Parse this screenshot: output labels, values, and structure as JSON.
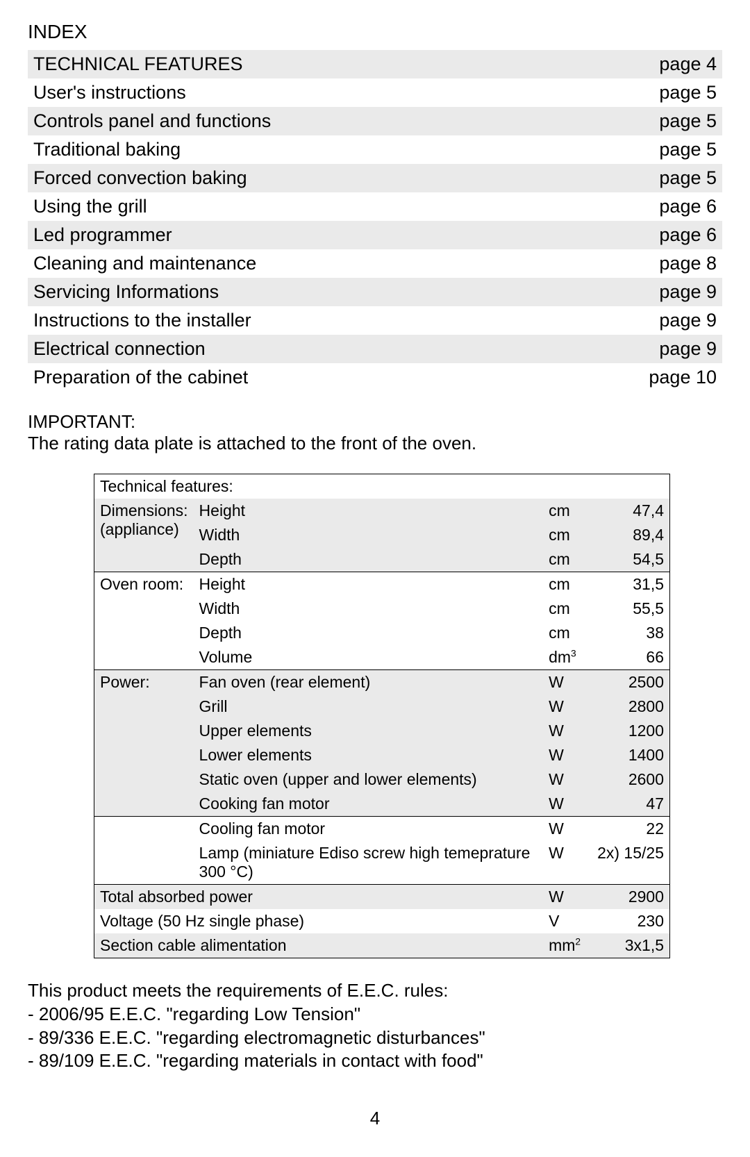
{
  "index": {
    "title": "INDEX",
    "rows": [
      {
        "label": "TECHNICAL FEATURES",
        "page": "page 4",
        "shade": true
      },
      {
        "label": "User's instructions",
        "page": "page 5",
        "shade": false
      },
      {
        "label": "Controls panel and functions",
        "page": "page 5",
        "shade": true
      },
      {
        "label": "Traditional baking",
        "page": "page 5",
        "shade": false
      },
      {
        "label": "Forced convection baking",
        "page": "page 5",
        "shade": true
      },
      {
        "label": "Using the grill",
        "page": "page 6",
        "shade": false
      },
      {
        "label": "Led programmer",
        "page": "page 6",
        "shade": true
      },
      {
        "label": "Cleaning and maintenance",
        "page": "page 8",
        "shade": false
      },
      {
        "label": "Servicing Informations",
        "page": "page 9",
        "shade": true
      },
      {
        "label": "Instructions to the installer",
        "page": "page 9",
        "shade": false
      },
      {
        "label": "Electrical connection",
        "page": "page 9",
        "shade": true
      },
      {
        "label": "Preparation of the cabinet",
        "page": "page 10",
        "shade": false
      }
    ]
  },
  "important": {
    "title": "IMPORTANT:",
    "body": "The rating data plate is attached to the front of the oven."
  },
  "tech": {
    "header": "Technical features:",
    "groups": [
      {
        "label": "Dimensions:\n(appliance)",
        "rows": [
          {
            "name": "Height",
            "unit": "cm",
            "value": "47,4"
          },
          {
            "name": "Width",
            "unit": "cm",
            "value": "89,4"
          },
          {
            "name": "Depth",
            "unit": "cm",
            "value": "54,5"
          }
        ],
        "sepBefore": false,
        "shade": true
      },
      {
        "label": "Oven room:",
        "rows": [
          {
            "name": "Height",
            "unit": "cm",
            "value": "31,5"
          },
          {
            "name": "Width",
            "unit": "cm",
            "value": "55,5"
          },
          {
            "name": "Depth",
            "unit": "cm",
            "value": "38"
          },
          {
            "name": "Volume",
            "unit": "dm³",
            "value": "66"
          }
        ],
        "sepBefore": true,
        "shade": false
      },
      {
        "label": "Power:",
        "rows": [
          {
            "name": "Fan oven (rear element)",
            "unit": "W",
            "value": "2500"
          },
          {
            "name": "Grill",
            "unit": "W",
            "value": "2800"
          },
          {
            "name": "Upper  elements",
            "unit": "W",
            "value": "1200"
          },
          {
            "name": "Lower elements",
            "unit": "W",
            "value": "1400"
          },
          {
            "name": "Static oven (upper and lower elements)",
            "unit": "W",
            "value": "2600"
          },
          {
            "name": "Cooking fan motor",
            "unit": "W",
            "value": "47"
          }
        ],
        "sepBefore": true,
        "shade": true
      },
      {
        "label": "",
        "rows": [
          {
            "name": "Cooling fan motor",
            "unit": "W",
            "value": "22"
          },
          {
            "name": "Lamp (miniature Ediso screw high temeprature 300 °C)",
            "unit": "W",
            "value": "2x) 15/25"
          }
        ],
        "sepBefore": true,
        "shade": false
      }
    ],
    "footerRows": [
      {
        "label": "Total absorbed power",
        "unit": "W",
        "value": "2900",
        "shade": true
      },
      {
        "label": "Voltage (50 Hz single phase)",
        "unit": "V",
        "value": "230",
        "shade": false
      },
      {
        "label": "Section cable alimentation",
        "unit": "mm²",
        "value": "3x1,5",
        "shade": true
      }
    ]
  },
  "footer": {
    "lines": [
      "This product meets the requirements of E.E.C. rules:",
      "- 2006/95 E.E.C. \"regarding Low Tension\"",
      "- 89/336 E.E.C. \"regarding electromagnetic disturbances\"",
      "- 89/109 E.E.C. \"regarding materials in contact with food\""
    ]
  },
  "pageNumber": "4"
}
